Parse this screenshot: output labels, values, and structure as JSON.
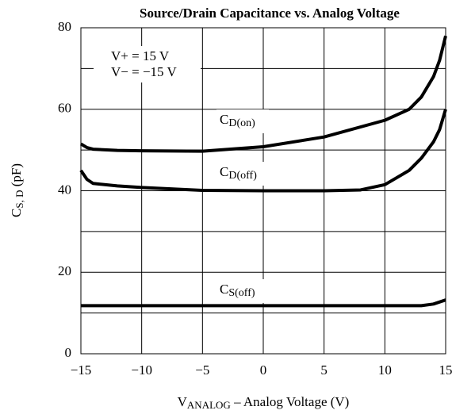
{
  "chart_data": {
    "type": "line",
    "title": "Source/Drain Capacitance vs. Analog Voltage",
    "xlabel": [
      {
        "text": "V"
      },
      {
        "text": "ANALOG",
        "sub": true
      },
      {
        "text": " – Analog Voltage (V)"
      }
    ],
    "ylabel": [
      {
        "text": "C"
      },
      {
        "text": "S, D",
        "sub": true
      },
      {
        "text": "  (pF)"
      }
    ],
    "xlim": [
      -15,
      15
    ],
    "ylim": [
      0,
      80
    ],
    "xticks": [
      {
        "value": -15,
        "label": "−15"
      },
      {
        "value": -10,
        "label": "−10"
      },
      {
        "value": -5,
        "label": "−5"
      },
      0,
      5,
      10,
      15
    ],
    "yticks": [
      0,
      20,
      40,
      60,
      80
    ],
    "yminor": [
      10,
      30,
      50,
      70
    ],
    "grid": true,
    "color": "#000000",
    "annotations": [
      "V+ = 15 V",
      "V− = −15 V"
    ],
    "series": [
      {
        "name": "C",
        "subscript": "D(on)",
        "color": "#000000",
        "x": [
          -15,
          -14.5,
          -14,
          -12,
          -10,
          -5,
          0,
          5,
          10,
          12,
          13,
          14,
          14.5,
          15
        ],
        "values": [
          51.5,
          50.6,
          50.2,
          49.9,
          49.8,
          49.7,
          50.8,
          53.2,
          57.3,
          60,
          63,
          68,
          72,
          78
        ]
      },
      {
        "name": "C",
        "subscript": "D(off)",
        "color": "#000000",
        "x": [
          -15,
          -14.5,
          -14,
          -12,
          -10,
          -5,
          0,
          5,
          8,
          10,
          12,
          13,
          14,
          14.5,
          15
        ],
        "values": [
          45,
          42.8,
          41.8,
          41.2,
          40.8,
          40.1,
          40,
          40,
          40.2,
          41.5,
          45,
          48,
          52,
          55,
          60
        ]
      },
      {
        "name": "C",
        "subscript": "S(off)",
        "color": "#000000",
        "x": [
          -15,
          -10,
          -5,
          0,
          5,
          10,
          13,
          14,
          15
        ],
        "values": [
          11.8,
          11.8,
          11.8,
          11.8,
          11.8,
          11.8,
          11.8,
          12.2,
          13.2
        ]
      }
    ]
  }
}
